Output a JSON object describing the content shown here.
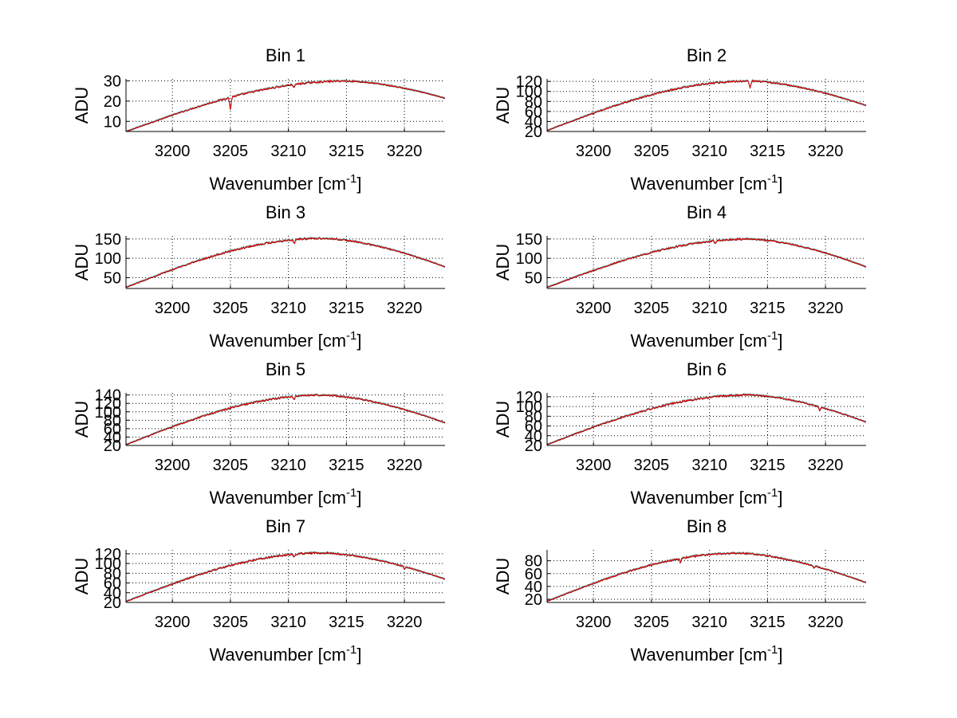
{
  "colors": {
    "trace_black": "#000000",
    "trace_cyan": "#2fb3b3",
    "trace_red": "#ff0000",
    "grid": "#000000",
    "background": "#ffffff"
  },
  "chart_data": [
    {
      "type": "line",
      "title": "Bin 1",
      "xlabel": "Wavenumber [cm",
      "xlabel_sup": "-1",
      "xlabel_end": "]",
      "ylabel": "ADU",
      "xlim": [
        3196,
        3223.5
      ],
      "ylim": [
        5,
        31
      ],
      "xticks": [
        3200,
        3205,
        3210,
        3215,
        3220
      ],
      "yticks": [
        10,
        20,
        30
      ],
      "grid": true,
      "dips": [
        [
          3205,
          6
        ],
        [
          3210.5,
          1.5
        ]
      ],
      "profile": {
        "start": 5,
        "peak_x": 3215,
        "peak": 30,
        "end": 21.5
      }
    },
    {
      "type": "line",
      "title": "Bin 2",
      "xlabel": "Wavenumber [cm",
      "xlabel_sup": "-1",
      "xlabel_end": "]",
      "ylabel": "ADU",
      "xlim": [
        3196,
        3223.5
      ],
      "ylim": [
        20,
        125
      ],
      "xticks": [
        3200,
        3205,
        3210,
        3215,
        3220
      ],
      "yticks": [
        20,
        40,
        60,
        80,
        100,
        120
      ],
      "grid": true,
      "dips": [
        [
          3213.5,
          12
        ]
      ],
      "profile": {
        "start": 22,
        "peak_x": 3213.5,
        "peak": 121,
        "end": 72
      }
    },
    {
      "type": "line",
      "title": "Bin 3",
      "xlabel": "Wavenumber [cm",
      "xlabel_sup": "-1",
      "xlabel_end": "]",
      "ylabel": "ADU",
      "xlim": [
        3196,
        3223.5
      ],
      "ylim": [
        22,
        158
      ],
      "xticks": [
        3200,
        3205,
        3210,
        3215,
        3220
      ],
      "yticks": [
        50,
        100,
        150
      ],
      "grid": true,
      "dips": [
        [
          3210.5,
          10
        ]
      ],
      "profile": {
        "start": 25,
        "peak_x": 3213,
        "peak": 152,
        "end": 78
      }
    },
    {
      "type": "line",
      "title": "Bin 4",
      "xlabel": "Wavenumber [cm",
      "xlabel_sup": "-1",
      "xlabel_end": "]",
      "ylabel": "ADU",
      "xlim": [
        3196,
        3223.5
      ],
      "ylim": [
        22,
        158
      ],
      "xticks": [
        3200,
        3205,
        3210,
        3215,
        3220
      ],
      "yticks": [
        50,
        100,
        150
      ],
      "grid": true,
      "dips": [
        [
          3210.5,
          6
        ]
      ],
      "profile": {
        "start": 25,
        "peak_x": 3213.5,
        "peak": 150,
        "end": 78
      }
    },
    {
      "type": "line",
      "title": "Bin 5",
      "xlabel": "Wavenumber [cm",
      "xlabel_sup": "-1",
      "xlabel_end": "]",
      "ylabel": "ADU",
      "xlim": [
        3196,
        3223.5
      ],
      "ylim": [
        20,
        145
      ],
      "xticks": [
        3200,
        3205,
        3210,
        3215,
        3220
      ],
      "yticks": [
        20,
        40,
        60,
        80,
        100,
        120,
        140
      ],
      "grid": true,
      "dips": [
        [
          3210.5,
          8
        ]
      ],
      "profile": {
        "start": 22,
        "peak_x": 3213,
        "peak": 140,
        "end": 74
      }
    },
    {
      "type": "line",
      "title": "Bin 6",
      "xlabel": "Wavenumber [cm",
      "xlabel_sup": "-1",
      "xlabel_end": "]",
      "ylabel": "ADU",
      "xlim": [
        3196,
        3223.5
      ],
      "ylim": [
        20,
        128
      ],
      "xticks": [
        3200,
        3205,
        3210,
        3215,
        3220
      ],
      "yticks": [
        20,
        40,
        60,
        80,
        100,
        120
      ],
      "grid": true,
      "dips": [
        [
          3219.5,
          8
        ]
      ],
      "profile": {
        "start": 22,
        "peak_x": 3213.5,
        "peak": 124,
        "end": 68
      }
    },
    {
      "type": "line",
      "title": "Bin 7",
      "xlabel": "Wavenumber [cm",
      "xlabel_sup": "-1",
      "xlabel_end": "]",
      "ylabel": "ADU",
      "xlim": [
        3196,
        3223.5
      ],
      "ylim": [
        20,
        128
      ],
      "xticks": [
        3200,
        3205,
        3210,
        3215,
        3220
      ],
      "yticks": [
        20,
        40,
        60,
        80,
        100,
        120
      ],
      "grid": true,
      "dips": [
        [
          3210.5,
          6
        ],
        [
          3220,
          6
        ]
      ],
      "profile": {
        "start": 22,
        "peak_x": 3213,
        "peak": 122,
        "end": 68
      }
    },
    {
      "type": "line",
      "title": "Bin 8",
      "xlabel": "Wavenumber [cm",
      "xlabel_sup": "-1",
      "xlabel_end": "]",
      "ylabel": "ADU",
      "xlim": [
        3196,
        3223.5
      ],
      "ylim": [
        15,
        97
      ],
      "xticks": [
        3200,
        3205,
        3210,
        3215,
        3220
      ],
      "yticks": [
        20,
        40,
        60,
        80
      ],
      "grid": true,
      "dips": [
        [
          3207.5,
          6
        ],
        [
          3219,
          3
        ]
      ],
      "profile": {
        "start": 17,
        "peak_x": 3212.5,
        "peak": 92,
        "end": 46
      }
    }
  ]
}
